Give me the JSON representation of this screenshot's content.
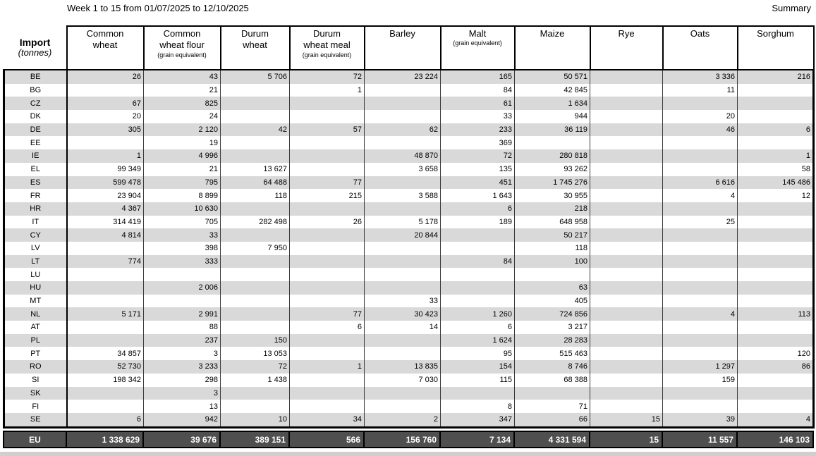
{
  "header": {
    "title": "Week 1 to 15 from 01/07/2025 to 12/10/2025",
    "summary": "Summary"
  },
  "table": {
    "corner": {
      "title": "Import",
      "unit": "(tonnes)"
    },
    "columns": [
      {
        "lines": [
          "Common",
          "wheat"
        ],
        "sub": ""
      },
      {
        "lines": [
          "Common",
          "wheat flour"
        ],
        "sub": "(grain equivalent)"
      },
      {
        "lines": [
          "Durum",
          "wheat"
        ],
        "sub": ""
      },
      {
        "lines": [
          "Durum",
          "wheat meal"
        ],
        "sub": "(grain equivalent)"
      },
      {
        "lines": [
          "Barley"
        ],
        "sub": ""
      },
      {
        "lines": [
          "Malt"
        ],
        "sub": "(grain equivalent)"
      },
      {
        "lines": [
          "Maize"
        ],
        "sub": ""
      },
      {
        "lines": [
          "Rye"
        ],
        "sub": ""
      },
      {
        "lines": [
          "Oats"
        ],
        "sub": ""
      },
      {
        "lines": [
          "Sorghum"
        ],
        "sub": ""
      }
    ],
    "rows": [
      {
        "code": "BE",
        "values": [
          "26",
          "43",
          "5 706",
          "72",
          "23 224",
          "165",
          "50 571",
          "",
          "3 336",
          "216"
        ]
      },
      {
        "code": "BG",
        "values": [
          "",
          "21",
          "",
          "1",
          "",
          "84",
          "42 845",
          "",
          "11",
          ""
        ]
      },
      {
        "code": "CZ",
        "values": [
          "67",
          "825",
          "",
          "",
          "",
          "61",
          "1 634",
          "",
          "",
          ""
        ]
      },
      {
        "code": "DK",
        "values": [
          "20",
          "24",
          "",
          "",
          "",
          "33",
          "944",
          "",
          "20",
          ""
        ]
      },
      {
        "code": "DE",
        "values": [
          "305",
          "2 120",
          "42",
          "57",
          "62",
          "233",
          "36 119",
          "",
          "46",
          "6"
        ]
      },
      {
        "code": "EE",
        "values": [
          "",
          "19",
          "",
          "",
          "",
          "369",
          "",
          "",
          "",
          ""
        ]
      },
      {
        "code": "IE",
        "values": [
          "1",
          "4 996",
          "",
          "",
          "48 870",
          "72",
          "280 818",
          "",
          "",
          "1"
        ]
      },
      {
        "code": "EL",
        "values": [
          "99 349",
          "21",
          "13 627",
          "",
          "3 658",
          "135",
          "93 262",
          "",
          "",
          "58"
        ]
      },
      {
        "code": "ES",
        "values": [
          "599 478",
          "795",
          "64 488",
          "77",
          "",
          "451",
          "1 745 276",
          "",
          "6 616",
          "145 486"
        ]
      },
      {
        "code": "FR",
        "values": [
          "23 904",
          "8 899",
          "118",
          "215",
          "3 588",
          "1 643",
          "30 955",
          "",
          "4",
          "12"
        ]
      },
      {
        "code": "HR",
        "values": [
          "4 367",
          "10 630",
          "",
          "",
          "",
          "6",
          "218",
          "",
          "",
          ""
        ]
      },
      {
        "code": "IT",
        "values": [
          "314 419",
          "705",
          "282 498",
          "26",
          "5 178",
          "189",
          "648 958",
          "",
          "25",
          ""
        ]
      },
      {
        "code": "CY",
        "values": [
          "4 814",
          "33",
          "",
          "",
          "20 844",
          "",
          "50 217",
          "",
          "",
          ""
        ]
      },
      {
        "code": "LV",
        "values": [
          "",
          "398",
          "7 950",
          "",
          "",
          "",
          "118",
          "",
          "",
          ""
        ]
      },
      {
        "code": "LT",
        "values": [
          "774",
          "333",
          "",
          "",
          "",
          "84",
          "100",
          "",
          "",
          ""
        ]
      },
      {
        "code": "LU",
        "values": [
          "",
          "",
          "",
          "",
          "",
          "",
          "",
          "",
          "",
          ""
        ]
      },
      {
        "code": "HU",
        "values": [
          "",
          "2 006",
          "",
          "",
          "",
          "",
          "63",
          "",
          "",
          ""
        ]
      },
      {
        "code": "MT",
        "values": [
          "",
          "",
          "",
          "",
          "33",
          "",
          "405",
          "",
          "",
          ""
        ]
      },
      {
        "code": "NL",
        "values": [
          "5 171",
          "2 991",
          "",
          "77",
          "30 423",
          "1 260",
          "724 856",
          "",
          "4",
          "113"
        ]
      },
      {
        "code": "AT",
        "values": [
          "",
          "88",
          "",
          "6",
          "14",
          "6",
          "3 217",
          "",
          "",
          ""
        ]
      },
      {
        "code": "PL",
        "values": [
          "",
          "237",
          "150",
          "",
          "",
          "1 624",
          "28 283",
          "",
          "",
          ""
        ]
      },
      {
        "code": "PT",
        "values": [
          "34 857",
          "3",
          "13 053",
          "",
          "",
          "95",
          "515 463",
          "",
          "",
          "120"
        ]
      },
      {
        "code": "RO",
        "values": [
          "52 730",
          "3 233",
          "72",
          "1",
          "13 835",
          "154",
          "8 746",
          "",
          "1 297",
          "86"
        ]
      },
      {
        "code": "SI",
        "values": [
          "198 342",
          "298",
          "1 438",
          "",
          "7 030",
          "115",
          "68 388",
          "",
          "159",
          ""
        ]
      },
      {
        "code": "SK",
        "values": [
          "",
          "3",
          "",
          "",
          "",
          "",
          "",
          "",
          "",
          ""
        ]
      },
      {
        "code": "FI",
        "values": [
          "",
          "13",
          "",
          "",
          "",
          "8",
          "71",
          "",
          "",
          ""
        ]
      },
      {
        "code": "SE",
        "values": [
          "6",
          "942",
          "10",
          "34",
          "2",
          "347",
          "66",
          "15",
          "39",
          "4"
        ]
      }
    ],
    "total": {
      "code": "EU",
      "values": [
        "1 338 629",
        "39 676",
        "389 151",
        "566",
        "156 760",
        "7 134",
        "4 331 594",
        "15",
        "11 557",
        "146 103"
      ]
    }
  },
  "colors": {
    "row_stripe": "#d9d9d9",
    "total_bg": "#4f4f4f",
    "total_text": "#ffffff",
    "border": "#000000"
  }
}
